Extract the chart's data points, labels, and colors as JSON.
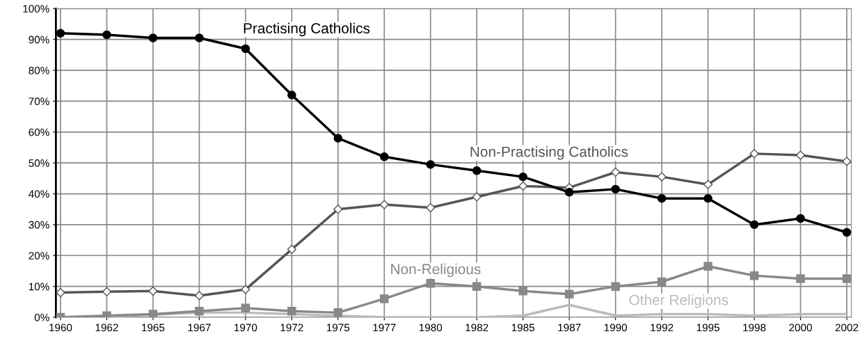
{
  "chart_data": {
    "type": "line",
    "categories": [
      "1960",
      "1962",
      "1965",
      "1967",
      "1970",
      "1972",
      "1975",
      "1977",
      "1980",
      "1982",
      "1985",
      "1987",
      "1990",
      "1992",
      "1995",
      "1998",
      "2000",
      "2002"
    ],
    "series": [
      {
        "name": "Practising Catholics",
        "color": "#000000",
        "marker": "circle",
        "values": [
          92,
          91.5,
          90.5,
          90.5,
          87,
          72,
          58,
          52,
          49.5,
          47.5,
          45.5,
          40.5,
          41.5,
          38.5,
          38.5,
          30,
          32,
          27.5
        ]
      },
      {
        "name": "Non-Practising Catholics",
        "color": "#555555",
        "marker": "diamond",
        "values": [
          8,
          8.3,
          8.5,
          7,
          9,
          22,
          35,
          36.5,
          35.5,
          39,
          42.5,
          42,
          47,
          45.5,
          43,
          53,
          52.5,
          50.5
        ]
      },
      {
        "name": "Non-Religious",
        "color": "#888888",
        "marker": "square",
        "values": [
          0,
          0.5,
          1,
          2,
          3,
          2,
          1.5,
          6,
          11,
          10,
          8.5,
          7.5,
          10,
          11.5,
          16.5,
          13.5,
          12.5,
          12.5
        ]
      },
      {
        "name": "Other Religions",
        "color": "#bbbbbb",
        "marker": "none",
        "values": [
          0,
          0.3,
          0.8,
          1.5,
          1.5,
          1,
          0.5,
          0,
          0,
          0,
          0.5,
          4,
          0.5,
          1,
          1,
          0.5,
          1,
          1
        ]
      }
    ],
    "ylim": [
      0,
      100
    ],
    "yticks": [
      {
        "value": 0,
        "label": "0%"
      },
      {
        "value": 10,
        "label": "10%"
      },
      {
        "value": 20,
        "label": "20%"
      },
      {
        "value": 30,
        "label": "30%"
      },
      {
        "value": 40,
        "label": "40%"
      },
      {
        "value": 50,
        "label": "50%"
      },
      {
        "value": 60,
        "label": "60%"
      },
      {
        "value": 70,
        "label": "70%"
      },
      {
        "value": 80,
        "label": "80%"
      },
      {
        "value": 90,
        "label": "90%"
      },
      {
        "value": 100,
        "label": "100%"
      }
    ],
    "grid": true,
    "line_style": "solid"
  }
}
